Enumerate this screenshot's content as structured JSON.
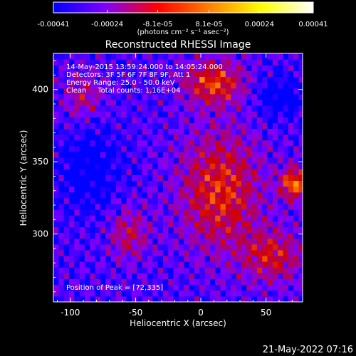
{
  "chart_data": {
    "type": "heatmap",
    "title": "Reconstructed RHESSI Image",
    "xlabel": "Heliocentric X (arcsec)",
    "ylabel": "Heliocentric Y (arcsec)",
    "xlim": [
      -113,
      78
    ],
    "ylim": [
      253,
      425
    ],
    "xticks": [
      -100,
      -50,
      0,
      50
    ],
    "yticks": [
      300,
      350,
      400
    ],
    "colorbar": {
      "range": [
        -0.00041,
        0.00041
      ],
      "tick_values": [
        -0.00041,
        -0.00024,
        -8.1e-05,
        8.1e-05,
        0.00024,
        0.00041
      ],
      "tick_labels": [
        "-0.00041",
        "-0.00024",
        "-8.1e-05",
        "8.1e-05",
        "0.00024",
        "0.00041"
      ],
      "units": "(photons cm⁻² s⁻¹ asec⁻²)",
      "colors": [
        "#0000ff",
        "#7f00ff",
        "#ff0000",
        "#ff8000",
        "#ffff00",
        "#ffffff"
      ]
    },
    "annotations": [
      "14-May-2015 13:59:24.000 to 14:05:24.000",
      "Detectors: 3F 5F 6F 7F 8F 9F, Att 1",
      "Energy Range: 25.0 - 50.0 keV",
      "Clean     Total counts: 1.16E+04"
    ],
    "peak_label": "Position of Peak = [72,335]",
    "peak": [
      72,
      335
    ]
  },
  "footer_date": "21-May-2022 07:16"
}
